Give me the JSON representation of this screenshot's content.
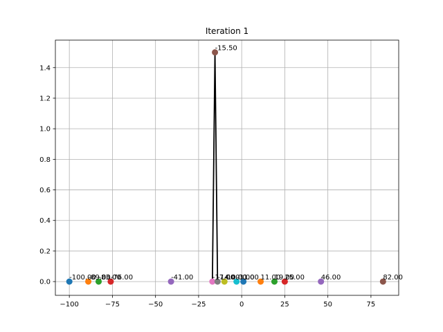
{
  "chart_data": {
    "type": "scatter",
    "title": "Iteration 1",
    "xlabel": "",
    "ylabel": "",
    "xlim": [
      -108.1,
      91.1
    ],
    "ylim": [
      -0.09,
      1.58
    ],
    "grid": true,
    "x_ticks": [
      -100,
      -75,
      -50,
      -25,
      0,
      25,
      50,
      75
    ],
    "y_ticks": [
      0.0,
      0.2,
      0.4,
      0.6,
      0.8,
      1.0,
      1.2,
      1.4
    ],
    "x_tick_labels": [
      "−100",
      "−75",
      "−50",
      "−25",
      "0",
      "25",
      "50",
      "75"
    ],
    "y_tick_labels": [
      "0.0",
      "0.2",
      "0.4",
      "0.6",
      "0.8",
      "1.0",
      "1.2",
      "1.4"
    ],
    "points": [
      {
        "x": -100,
        "y": 0,
        "label": "-100.00",
        "color": "#1f77b4"
      },
      {
        "x": -89,
        "y": 0,
        "label": "-89.00",
        "color": "#ff7f0e"
      },
      {
        "x": -83,
        "y": 0,
        "label": "-83.00",
        "color": "#2ca02c"
      },
      {
        "x": -76,
        "y": 0,
        "label": "-76.00",
        "color": "#d62728"
      },
      {
        "x": -41,
        "y": 0,
        "label": "-41.00",
        "color": "#9467bd"
      },
      {
        "x": -15.5,
        "y": 1.5,
        "label": "-15.50",
        "color": "#8c564b"
      },
      {
        "x": -17,
        "y": 0,
        "label": "-17.00",
        "color": "#e377c2"
      },
      {
        "x": -14,
        "y": 0,
        "label": "-14.00",
        "color": "#7f7f7f"
      },
      {
        "x": -10,
        "y": 0,
        "label": "-10.00",
        "color": "#bcbd22"
      },
      {
        "x": -3,
        "y": 0,
        "label": "-3.00",
        "color": "#17becf"
      },
      {
        "x": 1,
        "y": 0,
        "label": "1.00",
        "color": "#1f77b4"
      },
      {
        "x": 11,
        "y": 0,
        "label": "11.00",
        "color": "#ff7f0e"
      },
      {
        "x": 19,
        "y": 0,
        "label": "19.00",
        "color": "#2ca02c"
      },
      {
        "x": 25,
        "y": 0,
        "label": "25.00",
        "color": "#d62728"
      },
      {
        "x": 46,
        "y": 0,
        "label": "46.00",
        "color": "#9467bd"
      },
      {
        "x": 82,
        "y": 0,
        "label": "82.00",
        "color": "#8c564b"
      }
    ],
    "line": {
      "color": "#000000",
      "x": [
        -17,
        -15.5,
        -14
      ],
      "y": [
        0,
        1.5,
        0
      ]
    }
  }
}
